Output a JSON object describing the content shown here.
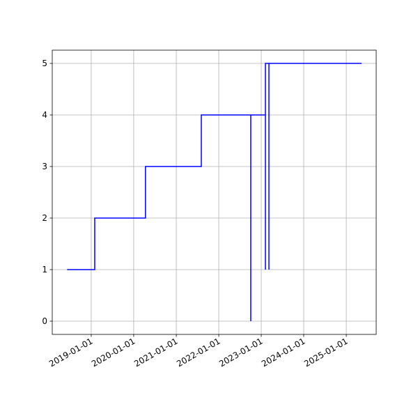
{
  "chart_data": {
    "type": "line",
    "step": true,
    "color": "#0000ff",
    "grid": true,
    "x": [
      "2018-06-08",
      "2019-01-31",
      "2019-01-31",
      "2020-04-11",
      "2020-04-11",
      "2021-08-04",
      "2021-08-04",
      "2022-10-03",
      "2022-10-03",
      "2022-10-03",
      "2023-02-06",
      "2023-02-06",
      "2023-02-06",
      "2023-03-08",
      "2023-03-08",
      "2023-03-08",
      "2025-05-12"
    ],
    "values": [
      1,
      1,
      2,
      2,
      3,
      3,
      4,
      4,
      0,
      4,
      4,
      1,
      5,
      5,
      1,
      5,
      5
    ],
    "xlim": [
      "2018-01-31",
      "2025-09-15"
    ],
    "xticks": [
      "2019-01-01",
      "2020-01-01",
      "2021-01-01",
      "2022-01-01",
      "2023-01-01",
      "2024-01-01",
      "2025-01-01"
    ],
    "ylim": [
      -0.257,
      5.257
    ],
    "yticks": [
      0,
      1,
      2,
      3,
      4,
      5
    ]
  }
}
